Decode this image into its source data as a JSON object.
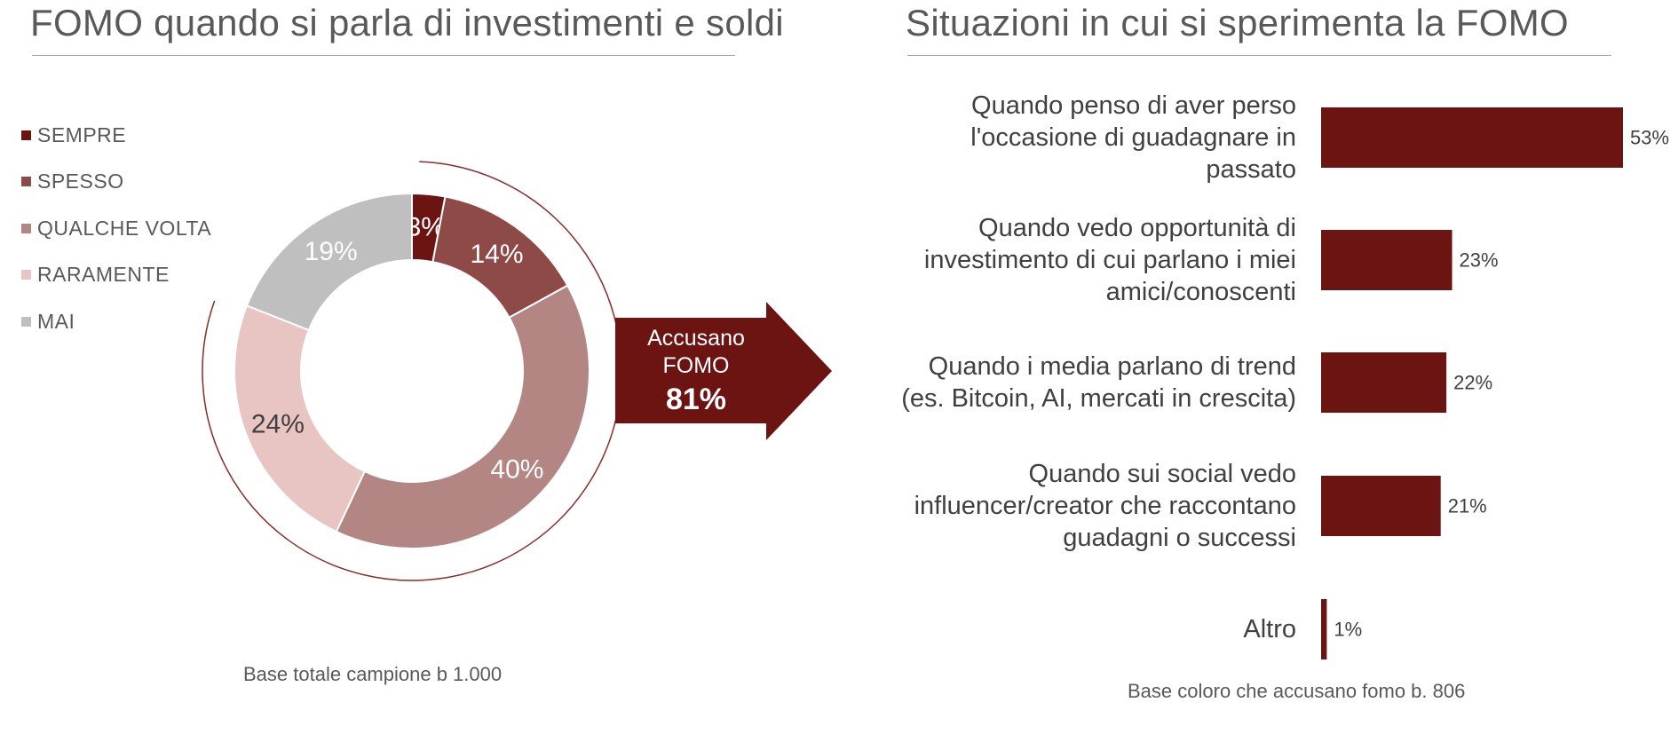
{
  "left_panel": {
    "title": "FOMO quando si parla di investimenti e soldi",
    "base_note": "Base totale campione b 1.000",
    "callout": {
      "line1": "Accusano",
      "line2": "FOMO",
      "value": "81%"
    }
  },
  "right_panel": {
    "title": "Situazioni in cui si sperimenta la FOMO",
    "base_note": "Base coloro che accusano fomo b. 806"
  },
  "chart_data": [
    {
      "type": "pie",
      "variant": "donut",
      "title": "FOMO quando si parla di investimenti e soldi",
      "legend_position": "left",
      "categories": [
        "SEMPRE",
        "SPESSO",
        "QUALCHE VOLTA",
        "RARAMENTE",
        "MAI"
      ],
      "values": [
        3,
        14,
        40,
        24,
        19
      ],
      "labels": [
        "3%",
        "14%",
        "40%",
        "24%",
        "19%"
      ],
      "colors": [
        "#6b1412",
        "#8e4a47",
        "#b48683",
        "#e8c4c3",
        "#bfbfbf"
      ],
      "highlight": {
        "categories": [
          "SEMPRE",
          "SPESSO",
          "QUALCHE VOLTA",
          "RARAMENTE"
        ],
        "total": 81
      }
    },
    {
      "type": "bar",
      "orientation": "horizontal",
      "title": "Situazioni in cui si sperimenta la FOMO",
      "categories": [
        [
          "Quando penso di aver perso",
          "l'occasione di guadagnare in",
          "passato"
        ],
        [
          "Quando vedo opportunità di",
          "investimento di cui parlano i miei",
          "amici/conoscenti"
        ],
        [
          "Quando i media parlano di trend",
          "(es. Bitcoin, AI, mercati in crescita)"
        ],
        [
          "Quando sui social vedo",
          "influencer/creator che raccontano",
          "guadagni o successi"
        ],
        [
          "Altro"
        ]
      ],
      "values": [
        53,
        23,
        22,
        21,
        1
      ],
      "labels": [
        "53%",
        "23%",
        "22%",
        "21%",
        "1%"
      ],
      "xlim": [
        0,
        53
      ],
      "grid": false,
      "color": "#6b1412"
    }
  ]
}
